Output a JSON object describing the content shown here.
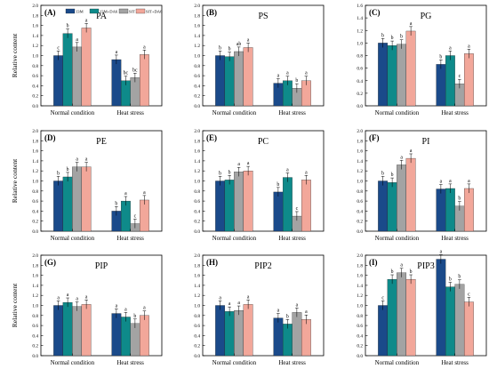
{
  "figure": {
    "colors": [
      "#1a4a8a",
      "#0e8a8a",
      "#a3a3a3",
      "#f2a79a"
    ],
    "legend": [
      "13M",
      "13M+DA6",
      "SIT",
      "SIT+DA6"
    ]
  },
  "chart_data": [
    {
      "type": "bar",
      "panel": "(A)",
      "title": "PA",
      "ylabel": "Relative content",
      "ylim": [
        0,
        2.0
      ],
      "yticks": [
        0.0,
        0.2,
        0.4,
        0.6,
        0.8,
        1.0,
        1.2,
        1.4,
        1.6,
        1.8,
        2.0
      ],
      "categories": [
        "Normal condition",
        "Heat stress"
      ],
      "series": [
        {
          "name": "13M",
          "values": [
            1.0,
            0.92
          ]
        },
        {
          "name": "13M+DA6",
          "values": [
            1.44,
            0.5
          ]
        },
        {
          "name": "SIT",
          "values": [
            1.17,
            0.56
          ]
        },
        {
          "name": "SIT+DA6",
          "values": [
            1.55,
            1.02
          ]
        }
      ],
      "labels": [
        [
          "c",
          "b",
          "a",
          "a"
        ],
        [
          "a",
          "bc",
          "bc",
          "a"
        ]
      ],
      "legend": "top-left"
    },
    {
      "type": "bar",
      "panel": "(B)",
      "title": "PS",
      "ylabel": "",
      "ylim": [
        0,
        2.0
      ],
      "yticks": [
        0.0,
        0.2,
        0.4,
        0.6,
        0.8,
        1.0,
        1.2,
        1.4,
        1.6,
        1.8,
        2.0
      ],
      "categories": [
        "Normal condition",
        "Heat stress"
      ],
      "series": [
        {
          "name": "13M",
          "values": [
            1.0,
            0.45
          ]
        },
        {
          "name": "13M+DA6",
          "values": [
            0.98,
            0.5
          ]
        },
        {
          "name": "SIT",
          "values": [
            1.08,
            0.35
          ]
        },
        {
          "name": "SIT+DA6",
          "values": [
            1.16,
            0.5
          ]
        }
      ],
      "labels": [
        [
          "b",
          "b",
          "ab",
          "a"
        ],
        [
          "a",
          "a",
          "b",
          "a"
        ]
      ]
    },
    {
      "type": "bar",
      "panel": "(C)",
      "title": "PG",
      "ylabel": "",
      "ylim": [
        0,
        1.6
      ],
      "yticks": [
        0.0,
        0.2,
        0.4,
        0.6,
        0.8,
        1.0,
        1.2,
        1.4,
        1.6
      ],
      "categories": [
        "Normal condition",
        "Heat stress"
      ],
      "series": [
        {
          "name": "13M",
          "values": [
            1.0,
            0.66
          ]
        },
        {
          "name": "13M+DA6",
          "values": [
            0.96,
            0.8
          ]
        },
        {
          "name": "SIT",
          "values": [
            0.98,
            0.35
          ]
        },
        {
          "name": "SIT+DA6",
          "values": [
            1.19,
            0.83
          ]
        }
      ],
      "labels": [
        [
          "b",
          "b",
          "b",
          "a"
        ],
        [
          "b",
          "a",
          "c",
          "a"
        ]
      ]
    },
    {
      "type": "bar",
      "panel": "(D)",
      "title": "PE",
      "ylabel": "Relative content",
      "ylim": [
        0,
        2.0
      ],
      "yticks": [
        0.0,
        0.2,
        0.4,
        0.6,
        0.8,
        1.0,
        1.2,
        1.4,
        1.6,
        1.8,
        2.0
      ],
      "categories": [
        "Normal condition",
        "Heat stress"
      ],
      "series": [
        {
          "name": "13M",
          "values": [
            1.0,
            0.4
          ]
        },
        {
          "name": "13M+DA6",
          "values": [
            1.08,
            0.6
          ]
        },
        {
          "name": "SIT",
          "values": [
            1.28,
            0.15
          ]
        },
        {
          "name": "SIT+DA6",
          "values": [
            1.28,
            0.62
          ]
        }
      ],
      "labels": [
        [
          "b",
          "b",
          "a",
          "a"
        ],
        [
          "b",
          "a",
          "c",
          "a"
        ]
      ]
    },
    {
      "type": "bar",
      "panel": "(E)",
      "title": "PC",
      "ylabel": "",
      "ylim": [
        0,
        2.0
      ],
      "yticks": [
        0.0,
        0.2,
        0.4,
        0.6,
        0.8,
        1.0,
        1.2,
        1.4,
        1.6,
        1.8,
        2.0
      ],
      "categories": [
        "Normal condition",
        "Heat stress"
      ],
      "series": [
        {
          "name": "13M",
          "values": [
            1.0,
            0.78
          ]
        },
        {
          "name": "13M+DA6",
          "values": [
            1.02,
            1.07
          ]
        },
        {
          "name": "SIT",
          "values": [
            1.18,
            0.3
          ]
        },
        {
          "name": "SIT+DA6",
          "values": [
            1.2,
            1.02
          ]
        }
      ],
      "labels": [
        [
          "b",
          "b",
          "a",
          "a"
        ],
        [
          "b",
          "a",
          "c",
          "a"
        ]
      ]
    },
    {
      "type": "bar",
      "panel": "(F)",
      "title": "PI",
      "ylabel": "",
      "ylim": [
        0,
        2.0
      ],
      "yticks": [
        0.0,
        0.2,
        0.4,
        0.6,
        0.8,
        1.0,
        1.2,
        1.4,
        1.6,
        1.8,
        2.0
      ],
      "categories": [
        "Normal condition",
        "Heat stress"
      ],
      "series": [
        {
          "name": "13M",
          "values": [
            1.0,
            0.84
          ]
        },
        {
          "name": "13M+DA6",
          "values": [
            0.97,
            0.85
          ]
        },
        {
          "name": "SIT",
          "values": [
            1.32,
            0.5
          ]
        },
        {
          "name": "SIT+DA6",
          "values": [
            1.45,
            0.85
          ]
        }
      ],
      "labels": [
        [
          "b",
          "b",
          "a",
          "a"
        ],
        [
          "a",
          "a",
          "b",
          "a"
        ]
      ]
    },
    {
      "type": "bar",
      "panel": "(G)",
      "title": "PIP",
      "ylabel": "Relative content",
      "ylim": [
        0,
        2.0
      ],
      "yticks": [
        0.0,
        0.2,
        0.4,
        0.6,
        0.8,
        1.0,
        1.2,
        1.4,
        1.6,
        1.8,
        2.0
      ],
      "categories": [
        "Normal condition",
        "Heat stress"
      ],
      "series": [
        {
          "name": "13M",
          "values": [
            1.0,
            0.84
          ]
        },
        {
          "name": "13M+DA6",
          "values": [
            1.06,
            0.77
          ]
        },
        {
          "name": "SIT",
          "values": [
            0.98,
            0.64
          ]
        },
        {
          "name": "SIT+DA6",
          "values": [
            1.02,
            0.8
          ]
        }
      ],
      "labels": [
        [
          "a",
          "a",
          "a",
          "a"
        ],
        [
          "a",
          "a",
          "b",
          "a"
        ]
      ]
    },
    {
      "type": "bar",
      "panel": "(H)",
      "title": "PIP2",
      "ylabel": "",
      "ylim": [
        0,
        2.0
      ],
      "yticks": [
        0.0,
        0.2,
        0.4,
        0.6,
        0.8,
        1.0,
        1.2,
        1.4,
        1.6,
        1.8,
        2.0
      ],
      "categories": [
        "Normal condition",
        "Heat stress"
      ],
      "series": [
        {
          "name": "13M",
          "values": [
            1.0,
            0.75
          ]
        },
        {
          "name": "13M+DA6",
          "values": [
            0.88,
            0.63
          ]
        },
        {
          "name": "SIT",
          "values": [
            0.9,
            0.86
          ]
        },
        {
          "name": "SIT+DA6",
          "values": [
            1.02,
            0.72
          ]
        }
      ],
      "labels": [
        [
          "a",
          "a",
          "a",
          "a"
        ],
        [
          "a",
          "b",
          "a",
          "a"
        ]
      ]
    },
    {
      "type": "bar",
      "panel": "(I)",
      "title": "PIP3",
      "ylabel": "",
      "ylim": [
        0,
        2.0
      ],
      "yticks": [
        0.0,
        0.2,
        0.4,
        0.6,
        0.8,
        1.0,
        1.2,
        1.4,
        1.6,
        1.8,
        2.0
      ],
      "categories": [
        "Normal condition",
        "Heat stress"
      ],
      "series": [
        {
          "name": "13M",
          "values": [
            1.0,
            1.92
          ]
        },
        {
          "name": "13M+DA6",
          "values": [
            1.52,
            1.37
          ]
        },
        {
          "name": "SIT",
          "values": [
            1.65,
            1.42
          ]
        },
        {
          "name": "SIT+DA6",
          "values": [
            1.52,
            1.07
          ]
        }
      ],
      "labels": [
        [
          "c",
          "b",
          "a",
          "b"
        ],
        [
          "a",
          "b",
          "b",
          "c"
        ]
      ]
    }
  ]
}
